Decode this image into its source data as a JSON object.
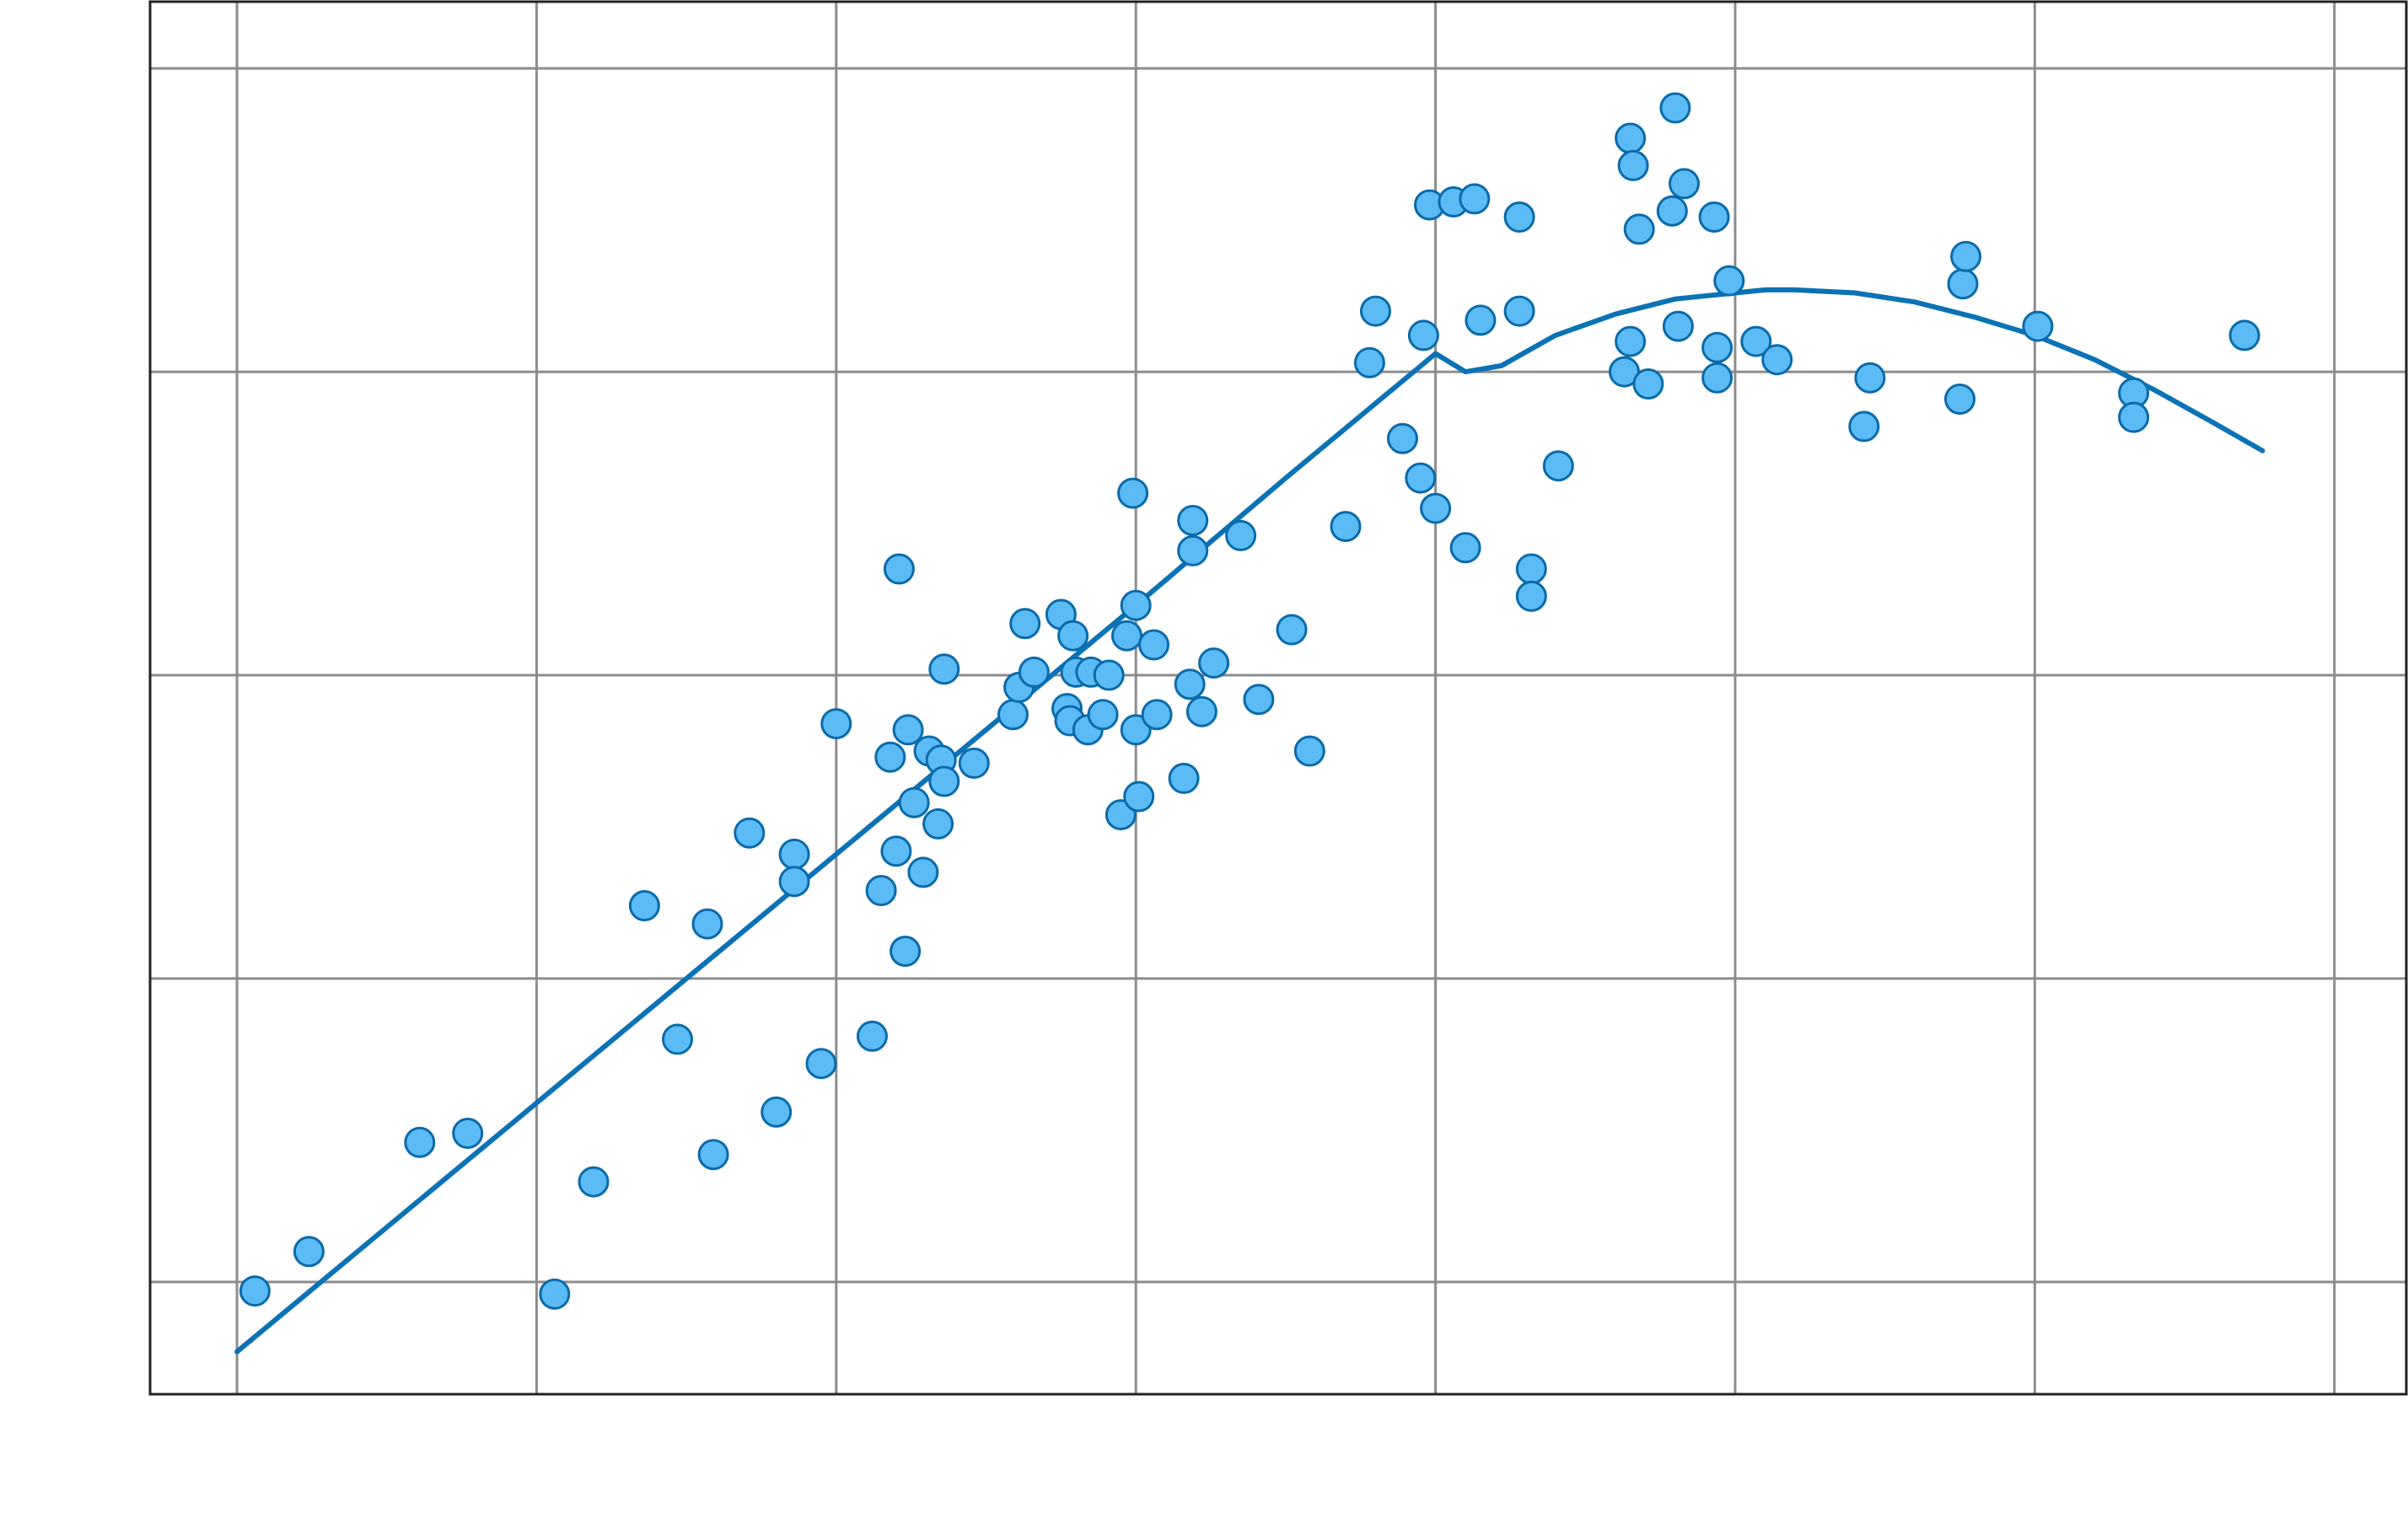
{
  "chart_data": {
    "type": "scatter",
    "title": "",
    "xlabel": "",
    "ylabel": "",
    "grid": true,
    "legend": "none",
    "colors": {
      "point_fill": "#5bbcf5",
      "point_edge": "#0a6aaa",
      "fit_line": "#0a72b5",
      "grid": "#8c8c8c",
      "frame": "#222222"
    },
    "xlim": [
      -0.29,
      7.24
    ],
    "ylim": [
      -0.37,
      4.22
    ],
    "x_gridlines": [
      0,
      1,
      2,
      3,
      4,
      5,
      6,
      7
    ],
    "y_gridlines": [
      0,
      1,
      2,
      3,
      4
    ],
    "series": [
      {
        "points": [
          [
            0.06,
            -0.03
          ],
          [
            0.24,
            0.1
          ],
          [
            0.61,
            0.46
          ],
          [
            0.77,
            0.49
          ],
          [
            1.06,
            -0.04
          ],
          [
            1.19,
            0.33
          ],
          [
            1.36,
            1.24
          ],
          [
            1.47,
            0.8
          ],
          [
            1.57,
            1.18
          ],
          [
            1.59,
            0.42
          ],
          [
            1.71,
            1.48
          ],
          [
            1.8,
            0.56
          ],
          [
            1.86,
            1.41
          ],
          [
            1.86,
            1.32
          ],
          [
            1.95,
            0.72
          ],
          [
            2.0,
            1.84
          ],
          [
            2.12,
            0.81
          ],
          [
            2.15,
            1.29
          ],
          [
            2.18,
            1.73
          ],
          [
            2.2,
            1.42
          ],
          [
            2.21,
            2.35
          ],
          [
            2.23,
            1.09
          ],
          [
            2.24,
            1.82
          ],
          [
            2.26,
            1.58
          ],
          [
            2.29,
            1.35
          ],
          [
            2.31,
            1.75
          ],
          [
            2.34,
            1.51
          ],
          [
            2.35,
            1.72
          ],
          [
            2.36,
            2.02
          ],
          [
            2.36,
            1.65
          ],
          [
            2.46,
            1.71
          ],
          [
            2.59,
            1.87
          ],
          [
            2.61,
            1.96
          ],
          [
            2.63,
            2.17
          ],
          [
            2.66,
            2.01
          ],
          [
            2.75,
            2.2
          ],
          [
            2.77,
            1.89
          ],
          [
            2.78,
            1.85
          ],
          [
            2.79,
            2.13
          ],
          [
            2.8,
            2.01
          ],
          [
            2.84,
            1.82
          ],
          [
            2.85,
            2.01
          ],
          [
            2.89,
            1.87
          ],
          [
            2.91,
            2.0
          ],
          [
            2.95,
            1.54
          ],
          [
            2.97,
            2.13
          ],
          [
            2.99,
            2.6
          ],
          [
            3.0,
            2.23
          ],
          [
            3.0,
            1.82
          ],
          [
            3.01,
            1.6
          ],
          [
            3.06,
            2.1
          ],
          [
            3.07,
            1.87
          ],
          [
            3.16,
            1.66
          ],
          [
            3.18,
            1.97
          ],
          [
            3.19,
            2.41
          ],
          [
            3.19,
            2.51
          ],
          [
            3.22,
            1.88
          ],
          [
            3.26,
            2.04
          ],
          [
            3.35,
            2.46
          ],
          [
            3.41,
            1.92
          ],
          [
            3.52,
            2.15
          ],
          [
            3.58,
            1.75
          ],
          [
            3.7,
            2.49
          ],
          [
            3.78,
            3.03
          ],
          [
            3.8,
            3.2
          ],
          [
            3.89,
            2.78
          ],
          [
            3.95,
            2.65
          ],
          [
            3.96,
            3.12
          ],
          [
            3.98,
            3.55
          ],
          [
            4.0,
            2.55
          ],
          [
            4.06,
            3.56
          ],
          [
            4.1,
            2.42
          ],
          [
            4.13,
            3.57
          ],
          [
            4.15,
            3.17
          ],
          [
            4.28,
            3.51
          ],
          [
            4.28,
            3.2
          ],
          [
            4.32,
            2.35
          ],
          [
            4.32,
            2.26
          ],
          [
            4.41,
            2.69
          ],
          [
            4.63,
            3.0
          ],
          [
            4.65,
            3.1
          ],
          [
            4.65,
            3.77
          ],
          [
            4.66,
            3.68
          ],
          [
            4.68,
            3.47
          ],
          [
            4.71,
            2.96
          ],
          [
            4.79,
            3.53
          ],
          [
            4.8,
            3.87
          ],
          [
            4.81,
            3.15
          ],
          [
            4.83,
            3.62
          ],
          [
            4.93,
            3.51
          ],
          [
            4.94,
            3.08
          ],
          [
            4.94,
            2.98
          ],
          [
            4.98,
            3.3
          ],
          [
            5.07,
            3.1
          ],
          [
            5.14,
            3.04
          ],
          [
            5.43,
            2.82
          ],
          [
            5.45,
            2.98
          ],
          [
            5.75,
            2.91
          ],
          [
            5.76,
            3.29
          ],
          [
            5.77,
            3.38
          ],
          [
            6.01,
            3.15
          ],
          [
            6.33,
            2.93
          ],
          [
            6.33,
            2.85
          ],
          [
            6.7,
            3.12
          ]
        ]
      }
    ],
    "fit_line": [
      [
        0.0,
        -0.23
      ],
      [
        0.5,
        0.18
      ],
      [
        1.0,
        0.59
      ],
      [
        1.5,
        1.0
      ],
      [
        2.0,
        1.41
      ],
      [
        2.5,
        1.82
      ],
      [
        3.0,
        2.23
      ],
      [
        3.5,
        2.65
      ],
      [
        4.0,
        3.06
      ],
      [
        4.1,
        3.0
      ],
      [
        4.22,
        3.02
      ],
      [
        4.4,
        3.12
      ],
      [
        4.6,
        3.19
      ],
      [
        4.8,
        3.24
      ],
      [
        5.0,
        3.26
      ],
      [
        5.1,
        3.27
      ],
      [
        5.2,
        3.27
      ],
      [
        5.4,
        3.26
      ],
      [
        5.6,
        3.23
      ],
      [
        5.8,
        3.18
      ],
      [
        6.0,
        3.12
      ],
      [
        6.2,
        3.04
      ],
      [
        6.4,
        2.94
      ],
      [
        6.6,
        2.83
      ],
      [
        6.76,
        2.74
      ]
    ]
  }
}
